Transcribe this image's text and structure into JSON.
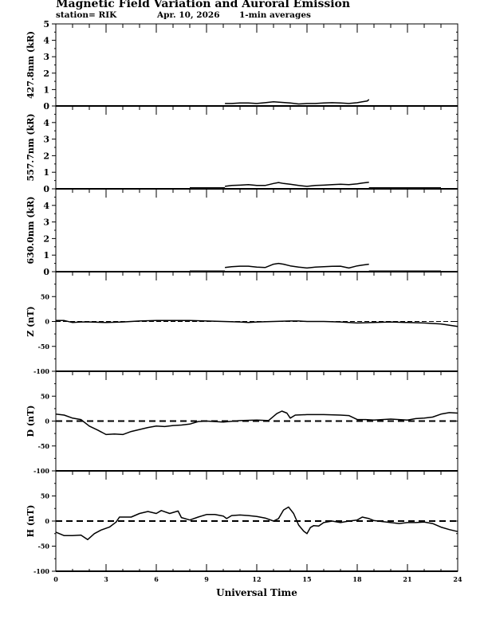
{
  "title": "Magnetic Field Variation and Auroral Emission",
  "station": "station= RIK",
  "date": "Apr. 10, 2026",
  "averaging": "1-min averages",
  "chart_data": [
    {
      "type": "line",
      "ylabel": "427.8nm (kR)",
      "ylim": [
        0,
        5
      ],
      "yticks": [
        "0",
        "1",
        "2",
        "3",
        "4",
        "5"
      ],
      "dashed_zero": false,
      "segments": [
        {
          "x": [
            10.1,
            10.5,
            11,
            11.5,
            12,
            12.5,
            13,
            13.5,
            14,
            14.5,
            15,
            15.5,
            16,
            16.5,
            17,
            17.5,
            18,
            18.3,
            18.6,
            18.7
          ],
          "y": [
            0.15,
            0.15,
            0.18,
            0.18,
            0.15,
            0.2,
            0.25,
            0.22,
            0.18,
            0.12,
            0.15,
            0.15,
            0.18,
            0.2,
            0.18,
            0.15,
            0.2,
            0.25,
            0.3,
            0.4
          ]
        }
      ]
    },
    {
      "type": "line",
      "ylabel": "557.7nm (kR)",
      "ylim": [
        0,
        5
      ],
      "yticks": [
        "0",
        "1",
        "2",
        "3",
        "4"
      ],
      "dashed_zero": false,
      "segments": [
        {
          "x": [
            8,
            10.1
          ],
          "y": [
            0.06,
            0.06
          ]
        },
        {
          "x": [
            10.1,
            10.5,
            11,
            11.5,
            12,
            12.5,
            13,
            13.3,
            13.6,
            14,
            14.5,
            15,
            15.5,
            16,
            16.5,
            17,
            17.5,
            18,
            18.3,
            18.7
          ],
          "y": [
            0.15,
            0.2,
            0.22,
            0.25,
            0.2,
            0.2,
            0.32,
            0.38,
            0.32,
            0.28,
            0.2,
            0.15,
            0.2,
            0.22,
            0.25,
            0.28,
            0.25,
            0.3,
            0.35,
            0.4
          ]
        },
        {
          "x": [
            18.7,
            23
          ],
          "y": [
            0.06,
            0.06
          ]
        }
      ]
    },
    {
      "type": "line",
      "ylabel": "630.0nm (kR)",
      "ylim": [
        0,
        5
      ],
      "yticks": [
        "0",
        "1",
        "2",
        "3",
        "4"
      ],
      "dashed_zero": false,
      "segments": [
        {
          "x": [
            8,
            10.1
          ],
          "y": [
            0.04,
            0.04
          ]
        },
        {
          "x": [
            10.1,
            10.5,
            11,
            11.5,
            12,
            12.5,
            13,
            13.3,
            13.6,
            14,
            14.5,
            15,
            15.5,
            16,
            16.5,
            17,
            17.5,
            18,
            18.3,
            18.7
          ],
          "y": [
            0.25,
            0.3,
            0.33,
            0.33,
            0.28,
            0.25,
            0.45,
            0.5,
            0.45,
            0.35,
            0.28,
            0.22,
            0.28,
            0.3,
            0.32,
            0.33,
            0.22,
            0.35,
            0.4,
            0.45
          ]
        },
        {
          "x": [
            18.7,
            23
          ],
          "y": [
            0.04,
            0.04
          ]
        }
      ]
    },
    {
      "type": "line",
      "ylabel": "Z (nT)",
      "ylim": [
        -100,
        100
      ],
      "yticks": [
        "-100",
        "-50",
        "0",
        "50"
      ],
      "dashed_zero": true,
      "segments": [
        {
          "x": [
            0,
            0.5,
            1,
            1.5,
            2,
            3,
            4,
            5,
            6,
            7,
            8,
            9,
            10,
            11,
            11.5,
            12,
            13,
            14,
            14.5,
            15,
            16,
            17,
            18,
            19,
            20,
            21,
            22,
            23,
            24
          ],
          "y": [
            2,
            2,
            -2,
            -1,
            -1,
            -2,
            -1,
            1,
            2,
            2,
            2,
            1,
            0,
            -1,
            -2,
            -1,
            0,
            1,
            1,
            0,
            0,
            -1,
            -3,
            -2,
            -1,
            -2,
            -3,
            -5,
            -10
          ]
        }
      ]
    },
    {
      "type": "line",
      "ylabel": "D (nT)",
      "ylim": [
        -100,
        100
      ],
      "yticks": [
        "-100",
        "-50",
        "0",
        "50"
      ],
      "dashed_zero": true,
      "segments": [
        {
          "x": [
            0,
            0.5,
            1,
            1.5,
            2,
            2.5,
            3,
            3.5,
            4,
            4.5,
            5,
            5.5,
            6,
            6.5,
            7,
            7.5,
            8,
            8.5,
            9,
            10,
            11,
            12,
            12.7,
            13.2,
            13.5,
            13.8,
            14,
            14.3,
            15,
            16,
            17,
            17.5,
            18,
            18.5,
            19,
            19.5,
            20,
            20.5,
            21,
            21.5,
            22,
            22.5,
            23,
            23.5,
            24
          ],
          "y": [
            14,
            12,
            6,
            3,
            -10,
            -18,
            -27,
            -26,
            -27,
            -21,
            -17,
            -13,
            -10,
            -11,
            -9,
            -8,
            -6,
            -1,
            0,
            -2,
            1,
            2,
            1,
            15,
            20,
            16,
            6,
            12,
            13,
            13,
            12,
            11,
            3,
            3,
            2,
            3,
            4,
            3,
            2,
            5,
            6,
            8,
            14,
            17,
            16
          ]
        }
      ]
    },
    {
      "type": "line",
      "ylabel": "H (nT)",
      "ylim": [
        -100,
        100
      ],
      "yticks": [
        "-100",
        "-50",
        "0",
        "50"
      ],
      "dashed_zero": true,
      "xlabel": "Universal Time",
      "xlim": [
        0,
        24
      ],
      "xticks": [
        "0",
        "3",
        "6",
        "9",
        "12",
        "15",
        "18",
        "21",
        "24"
      ],
      "segments": [
        {
          "x": [
            0,
            0.5,
            1,
            1.5,
            1.9,
            2.3,
            2.7,
            3.2,
            3.6,
            3.8,
            4.5,
            5,
            5.5,
            6,
            6.3,
            6.8,
            7.3,
            7.5,
            8,
            8.5,
            9,
            9.5,
            10,
            10.2,
            10.5,
            11,
            11.5,
            12,
            12.5,
            13,
            13.3,
            13.6,
            13.9,
            14.2,
            14.5,
            14.8,
            15,
            15.2,
            15.4,
            15.7,
            16,
            16.5,
            17,
            17.5,
            18,
            18.3,
            18.7,
            19,
            19.5,
            20,
            20.5,
            21,
            21.5,
            22,
            22.5,
            23,
            23.5,
            24
          ],
          "y": [
            -22,
            -29,
            -29,
            -28,
            -37,
            -25,
            -18,
            -12,
            -2,
            8,
            8,
            15,
            19,
            15,
            21,
            15,
            20,
            7,
            2,
            8,
            13,
            13,
            10,
            5,
            11,
            12,
            11,
            9,
            6,
            0,
            5,
            22,
            28,
            15,
            -8,
            -20,
            -25,
            -13,
            -9,
            -10,
            -3,
            0,
            -3,
            0,
            2,
            8,
            5,
            1,
            -1,
            -3,
            -5,
            -3,
            -3,
            -2,
            -5,
            -12,
            -17,
            -21
          ]
        }
      ]
    }
  ]
}
